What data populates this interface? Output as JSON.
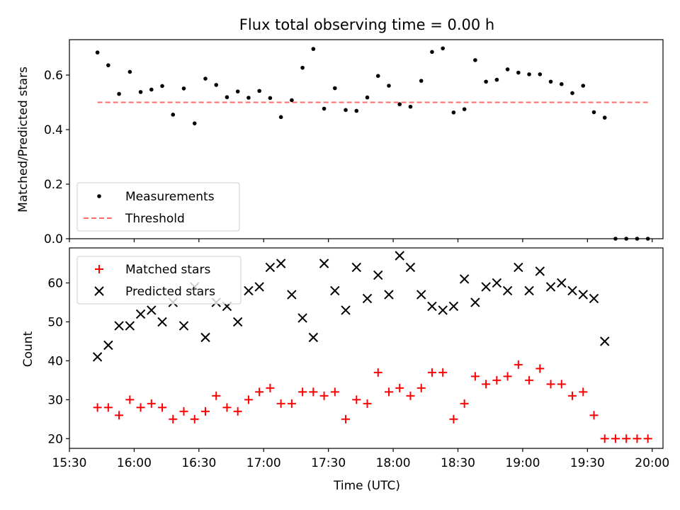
{
  "chart_data": [
    {
      "type": "scatter",
      "title": "Flux total observing time = 0.00 h",
      "xlabel": "",
      "ylabel": "Matched/Predicted stars",
      "xlim": [
        "15:30",
        "20:05"
      ],
      "ylim": [
        0,
        0.73
      ],
      "yticks": [
        "0.0",
        "0.2",
        "0.4",
        "0.6"
      ],
      "grid": false,
      "legend_position": "lower-left",
      "series": [
        {
          "name": "Measurements",
          "marker": "dot",
          "color": "#000000",
          "x": [
            "15:43",
            "15:48",
            "15:53",
            "15:58",
            "16:03",
            "16:08",
            "16:13",
            "16:18",
            "16:23",
            "16:28",
            "16:33",
            "16:38",
            "16:43",
            "16:48",
            "16:53",
            "16:58",
            "17:03",
            "17:08",
            "17:13",
            "17:18",
            "17:23",
            "17:28",
            "17:33",
            "17:38",
            "17:43",
            "17:48",
            "17:53",
            "17:58",
            "18:03",
            "18:08",
            "18:13",
            "18:18",
            "18:23",
            "18:28",
            "18:33",
            "18:38",
            "18:43",
            "18:48",
            "18:53",
            "18:58",
            "19:03",
            "19:08",
            "19:13",
            "19:18",
            "19:23",
            "19:28",
            "19:33",
            "19:38",
            "19:43",
            "19:48",
            "19:53",
            "19:58"
          ],
          "y": [
            0.683,
            0.636,
            0.531,
            0.612,
            0.538,
            0.547,
            0.56,
            0.455,
            0.551,
            0.423,
            0.587,
            0.564,
            0.519,
            0.54,
            0.517,
            0.542,
            0.516,
            0.446,
            0.508,
            0.627,
            0.696,
            0.477,
            0.552,
            0.472,
            0.469,
            0.518,
            0.597,
            0.561,
            0.493,
            0.484,
            0.579,
            0.685,
            0.698,
            0.463,
            0.475,
            0.655,
            0.576,
            0.583,
            0.621,
            0.609,
            0.603,
            0.603,
            0.576,
            0.567,
            0.534,
            0.561,
            0.464,
            0.444,
            0.0,
            0.0,
            0.0,
            0.0
          ]
        },
        {
          "name": "Threshold",
          "line_style": "dashed",
          "color": "#ff6b6b",
          "x": [
            "15:43",
            "19:58"
          ],
          "y": [
            0.5,
            0.5
          ]
        }
      ]
    },
    {
      "type": "scatter",
      "title": "",
      "xlabel": "Time (UTC)",
      "ylabel": "Count",
      "xlim": [
        "15:30",
        "20:05"
      ],
      "ylim": [
        17.5,
        69
      ],
      "xticks": [
        "15:30",
        "16:00",
        "16:30",
        "17:00",
        "17:30",
        "18:00",
        "18:30",
        "19:00",
        "19:30",
        "20:00"
      ],
      "yticks": [
        "20",
        "30",
        "40",
        "50",
        "60"
      ],
      "grid": false,
      "legend_position": "upper-left",
      "x": [
        "15:43",
        "15:48",
        "15:53",
        "15:58",
        "16:03",
        "16:08",
        "16:13",
        "16:18",
        "16:23",
        "16:28",
        "16:33",
        "16:38",
        "16:43",
        "16:48",
        "16:53",
        "16:58",
        "17:03",
        "17:08",
        "17:13",
        "17:18",
        "17:23",
        "17:28",
        "17:33",
        "17:38",
        "17:43",
        "17:48",
        "17:53",
        "17:58",
        "18:03",
        "18:08",
        "18:13",
        "18:18",
        "18:23",
        "18:28",
        "18:33",
        "18:38",
        "18:43",
        "18:48",
        "18:53",
        "18:58",
        "19:03",
        "19:08",
        "19:13",
        "19:18",
        "19:23",
        "19:28",
        "19:33",
        "19:38",
        "19:43",
        "19:48",
        "19:53",
        "19:58"
      ],
      "series": [
        {
          "name": "Matched stars",
          "marker": "plus",
          "color": "#ff0000",
          "values": [
            28,
            28,
            26,
            30,
            28,
            29,
            28,
            25,
            27,
            25,
            27,
            31,
            28,
            27,
            30,
            32,
            33,
            29,
            29,
            32,
            32,
            31,
            32,
            25,
            30,
            29,
            37,
            32,
            33,
            31,
            33,
            37,
            37,
            25,
            29,
            36,
            34,
            35,
            36,
            39,
            35,
            38,
            34,
            34,
            31,
            32,
            26,
            20,
            20,
            20,
            20,
            20
          ]
        },
        {
          "name": "Predicted stars",
          "marker": "x",
          "color": "#000000",
          "values": [
            41,
            44,
            49,
            49,
            52,
            53,
            50,
            55,
            49,
            59,
            46,
            55,
            54,
            50,
            58,
            59,
            64,
            65,
            57,
            51,
            46,
            65,
            58,
            53,
            64,
            56,
            62,
            57,
            67,
            64,
            57,
            54,
            53,
            54,
            61,
            55,
            59,
            60,
            58,
            64,
            58,
            63,
            59,
            60,
            58,
            57,
            56,
            45,
            null,
            null,
            null,
            null
          ]
        }
      ]
    }
  ]
}
